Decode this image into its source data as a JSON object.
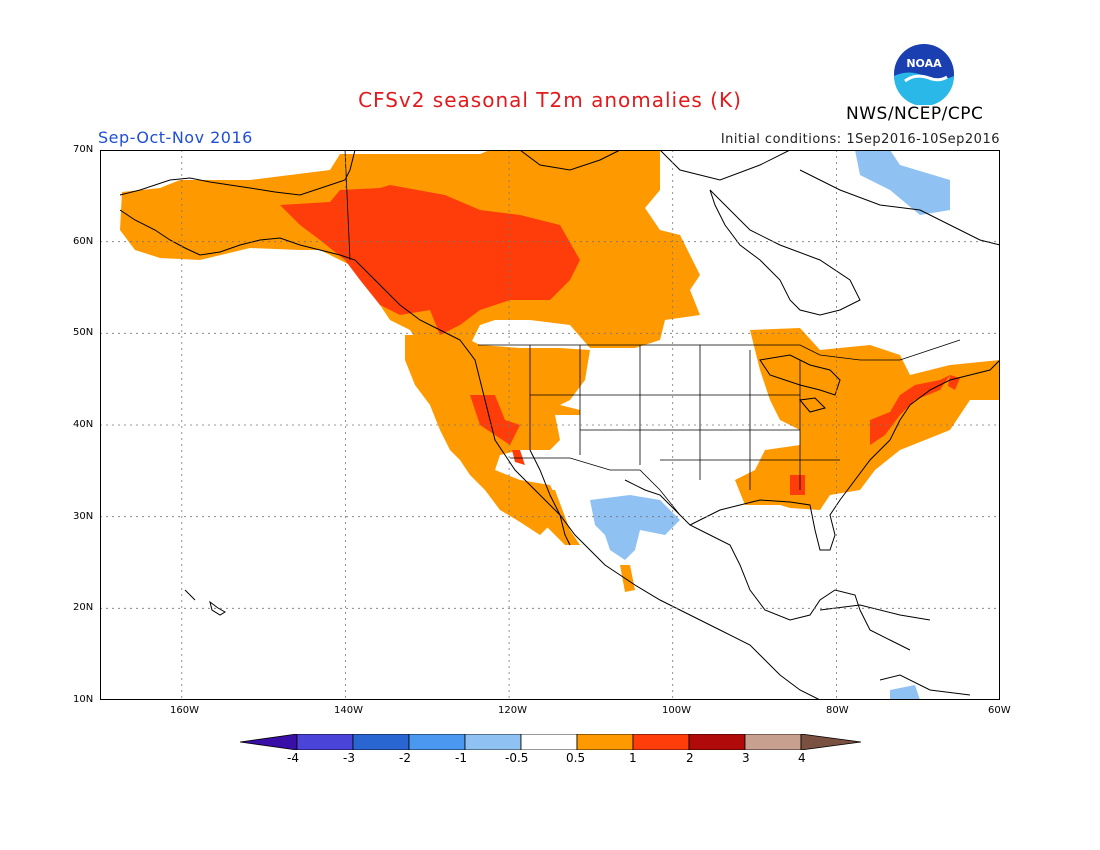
{
  "title": "CFSv2 seasonal T2m anomalies (K)",
  "season": "Sep-Oct-Nov 2016",
  "initial_conditions": "Initial conditions: 1Sep2016-10Sep2016",
  "organization": "NWS/NCEP/CPC",
  "logo_text": "NOAA",
  "map": {
    "lon_range": [
      -170,
      -60
    ],
    "lat_range": [
      10,
      70
    ],
    "lat_labels": [
      "70N",
      "60N",
      "50N",
      "40N",
      "30N",
      "20N",
      "10N"
    ],
    "lon_labels": [
      "160W",
      "140W",
      "120W",
      "100W",
      "80W",
      "60W"
    ],
    "grid": true
  },
  "colorbar": {
    "labels": [
      "-4",
      "-3",
      "-2",
      "-1",
      "-0.5",
      "0.5",
      "1",
      "2",
      "3",
      "4"
    ],
    "colors": [
      "#3a0fa8",
      "#4a44d8",
      "#2a66d2",
      "#4a98f0",
      "#8fc1f3",
      "#ffffff",
      "#ff9900",
      "#ff3d0a",
      "#b00a0a",
      "#c8a090",
      "#7a5040"
    ]
  }
}
